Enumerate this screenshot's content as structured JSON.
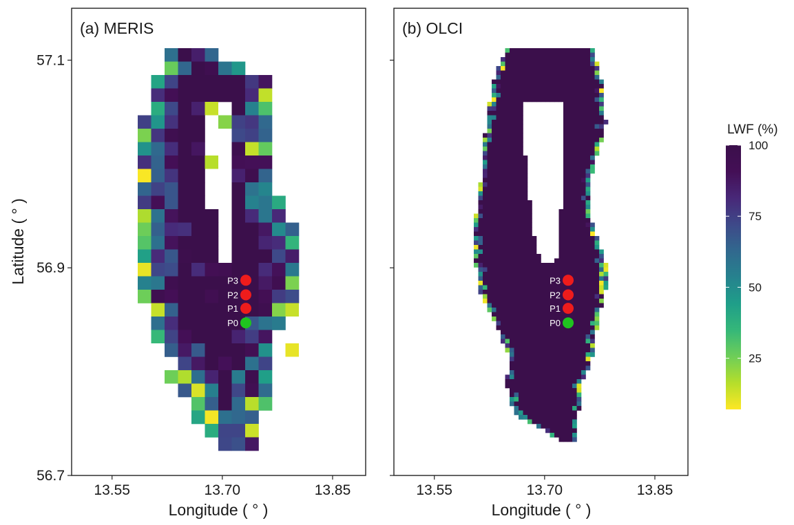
{
  "chart_data": {
    "type": "heatmap",
    "ylabel": "Latitude ( ° )",
    "xlabel": "Longitude ( ° )",
    "xticks": [
      "13.55",
      "13.70",
      "13.85"
    ],
    "yticks": [
      "57.1",
      "56.9",
      "56.7"
    ],
    "xlim": [
      13.495,
      13.895
    ],
    "ylim": [
      56.7,
      57.15
    ],
    "legend": {
      "title": "LWF (%)",
      "ticks": [
        "100",
        "75",
        "50",
        "25"
      ],
      "range": [
        7,
        100
      ],
      "colormap": "viridis (reversed)",
      "position": "right"
    },
    "panels": [
      {
        "title": "(a) MERIS",
        "points": [
          {
            "name": "P3",
            "lon": 13.732,
            "lat": 56.888,
            "color": "#ee1c1c"
          },
          {
            "name": "P2",
            "lon": 13.732,
            "lat": 56.874,
            "color": "#ee1c1c"
          },
          {
            "name": "P1",
            "lon": 13.732,
            "lat": 56.861,
            "color": "#ee1c1c"
          },
          {
            "name": "P0",
            "lon": 13.732,
            "lat": 56.847,
            "color": "#1fc41f"
          }
        ]
      },
      {
        "title": "(b) OLCI",
        "points": [
          {
            "name": "P3",
            "lon": 13.732,
            "lat": 56.888,
            "color": "#ee1c1c"
          },
          {
            "name": "P2",
            "lon": 13.732,
            "lat": 56.874,
            "color": "#ee1c1c"
          },
          {
            "name": "P1",
            "lon": 13.732,
            "lat": 56.861,
            "color": "#ee1c1c"
          },
          {
            "name": "P0",
            "lon": 13.732,
            "lat": 56.847,
            "color": "#1fc41f"
          }
        ]
      }
    ]
  }
}
